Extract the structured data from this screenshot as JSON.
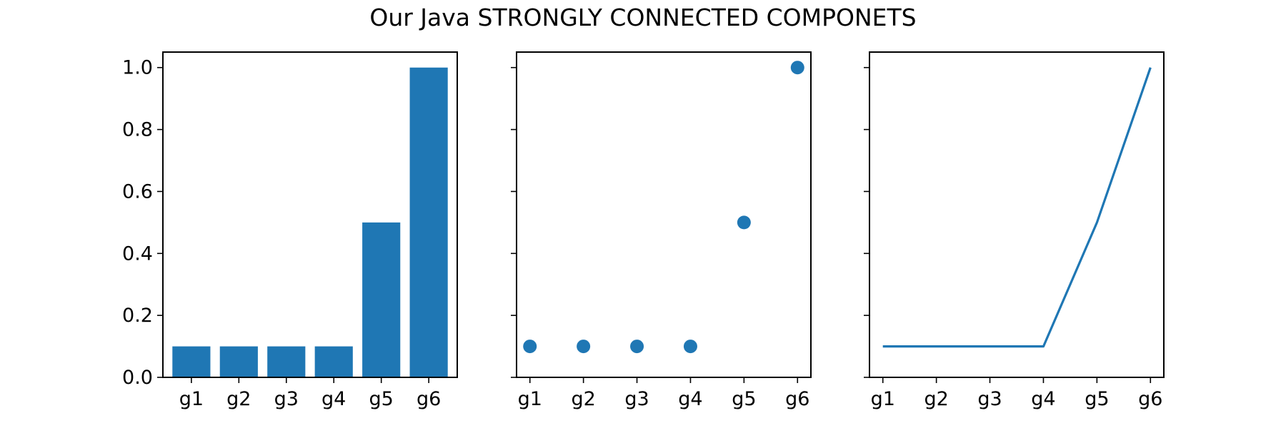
{
  "figure_title": "Our Java STRONGLY CONNECTED COMPONETS",
  "colors": {
    "series": "#1f77b4",
    "axes": "#000000",
    "background": "#ffffff"
  },
  "chart_data": [
    {
      "type": "bar",
      "categories": [
        "g1",
        "g2",
        "g3",
        "g4",
        "g5",
        "g6"
      ],
      "values": [
        0.1,
        0.1,
        0.1,
        0.1,
        0.5,
        1.0
      ],
      "title": "",
      "xlabel": "",
      "ylabel": "",
      "ylim": [
        0,
        1.05
      ],
      "yticks": [
        "0.0",
        "0.2",
        "0.4",
        "0.6",
        "0.8",
        "1.0"
      ],
      "show_y_tick_labels": true,
      "grid": false
    },
    {
      "type": "scatter",
      "categories": [
        "g1",
        "g2",
        "g3",
        "g4",
        "g5",
        "g6"
      ],
      "values": [
        0.1,
        0.1,
        0.1,
        0.1,
        0.5,
        1.0
      ],
      "title": "",
      "xlabel": "",
      "ylabel": "",
      "ylim": [
        0,
        1.05
      ],
      "yticks": [
        "0.0",
        "0.2",
        "0.4",
        "0.6",
        "0.8",
        "1.0"
      ],
      "show_y_tick_labels": false,
      "grid": false
    },
    {
      "type": "line",
      "categories": [
        "g1",
        "g2",
        "g3",
        "g4",
        "g5",
        "g6"
      ],
      "values": [
        0.1,
        0.1,
        0.1,
        0.1,
        0.5,
        1.0
      ],
      "title": "",
      "xlabel": "",
      "ylabel": "",
      "ylim": [
        0,
        1.05
      ],
      "yticks": [
        "0.0",
        "0.2",
        "0.4",
        "0.6",
        "0.8",
        "1.0"
      ],
      "show_y_tick_labels": false,
      "grid": false
    }
  ]
}
